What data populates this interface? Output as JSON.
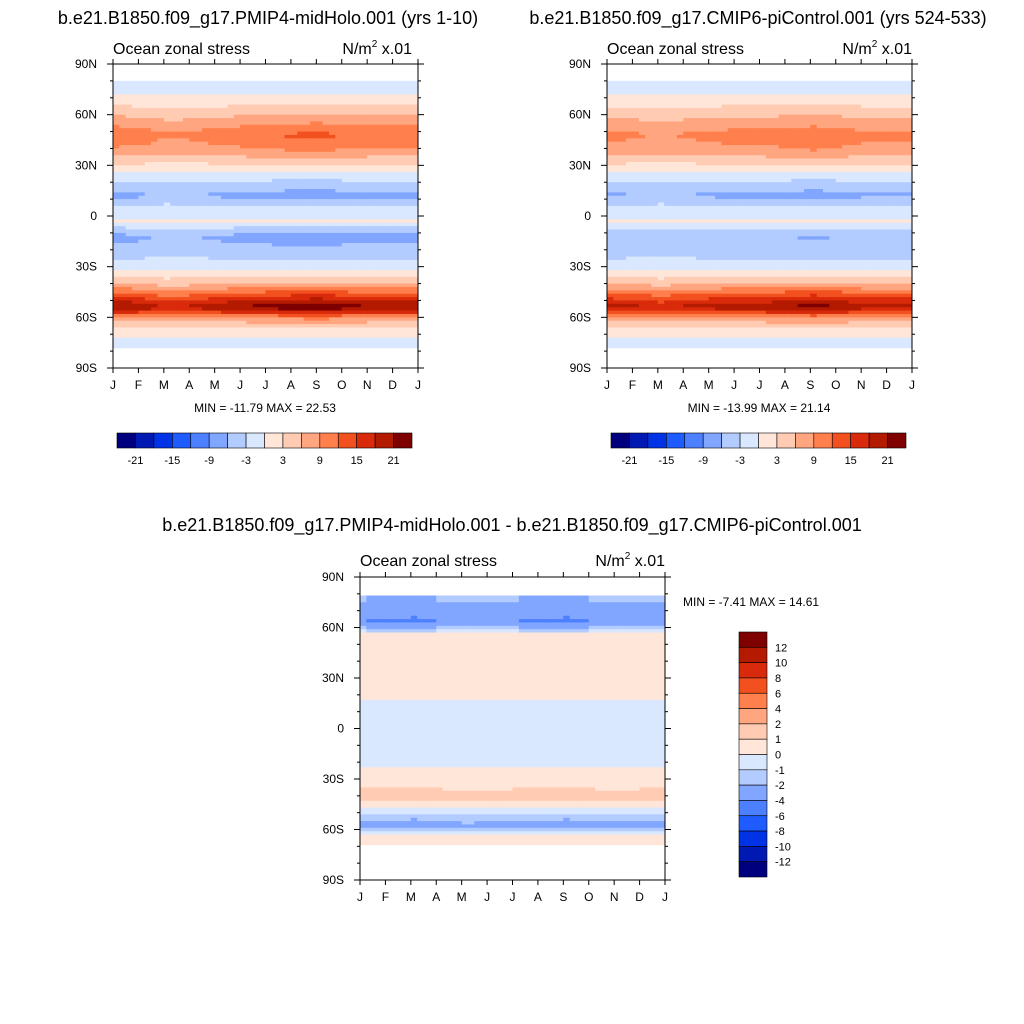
{
  "chart_data": [
    {
      "type": "heatmap",
      "title": "b.e21.B1850.f09_g17.PMIP4-midHolo.001 (yrs 1-10)",
      "left_label": "Ocean zonal stress",
      "units_base": "N/m",
      "units_exp": "2",
      "units_scale": " x.01",
      "x_ticks": [
        "J",
        "F",
        "M",
        "A",
        "M",
        "J",
        "J",
        "A",
        "S",
        "O",
        "N",
        "D",
        "J"
      ],
      "y_ticks": [
        "90N",
        "60N",
        "30N",
        "0",
        "30S",
        "60S",
        "90S"
      ],
      "ylim": [
        -90,
        90
      ],
      "stats": "MIN = -11.79 MAX =  22.53",
      "colorbar_labels": [
        "-21",
        "-15",
        "-9",
        "-3",
        "3",
        "9",
        "15",
        "21"
      ],
      "colorbar_orientation": "horizontal",
      "bands": [
        {
          "lat": 77,
          "value": -1.5
        },
        {
          "lat": 70,
          "value": 0.5
        },
        {
          "lat": 62,
          "value": 4
        },
        {
          "lat": 48,
          "value": 10
        },
        {
          "lat": 38,
          "value": 7
        },
        {
          "lat": 28,
          "value": 1
        },
        {
          "lat": 20,
          "value": -3
        },
        {
          "lat": 12,
          "value": -6
        },
        {
          "lat": 5,
          "value": -2
        },
        {
          "lat": -3,
          "value": 0
        },
        {
          "lat": -12,
          "value": -6
        },
        {
          "lat": -22,
          "value": -4
        },
        {
          "lat": -32,
          "value": 0
        },
        {
          "lat": -40,
          "value": 5
        },
        {
          "lat": -47,
          "value": 12
        },
        {
          "lat": -54,
          "value": 19
        },
        {
          "lat": -60,
          "value": 8
        },
        {
          "lat": -68,
          "value": 0.5
        },
        {
          "lat": -75,
          "value": -0.5
        }
      ],
      "monthly_mod": [
        0.15,
        0.1,
        -0.05,
        0,
        0.1,
        0.15,
        0.2,
        0.25,
        0.3,
        0.2,
        0.15,
        0.15,
        0.15
      ],
      "lat_north": 80,
      "lat_south": -78
    },
    {
      "type": "heatmap",
      "title": "b.e21.B1850.f09_g17.CMIP6-piControl.001 (yrs 524-533)",
      "left_label": "Ocean zonal stress",
      "units_base": "N/m",
      "units_exp": "2",
      "units_scale": " x.01",
      "x_ticks": [
        "J",
        "F",
        "M",
        "A",
        "M",
        "J",
        "J",
        "A",
        "S",
        "O",
        "N",
        "D",
        "J"
      ],
      "y_ticks": [
        "90N",
        "60N",
        "30N",
        "0",
        "30S",
        "60S",
        "90S"
      ],
      "ylim": [
        -90,
        90
      ],
      "stats": "MIN = -13.99 MAX =  21.14",
      "colorbar_labels": [
        "-21",
        "-15",
        "-9",
        "-3",
        "3",
        "9",
        "15",
        "21"
      ],
      "colorbar_orientation": "horizontal",
      "bands": [
        {
          "lat": 77,
          "value": -2
        },
        {
          "lat": 70,
          "value": 0.5
        },
        {
          "lat": 62,
          "value": 4
        },
        {
          "lat": 48,
          "value": 9
        },
        {
          "lat": 38,
          "value": 7
        },
        {
          "lat": 28,
          "value": 1
        },
        {
          "lat": 20,
          "value": -3
        },
        {
          "lat": 12,
          "value": -6
        },
        {
          "lat": 5,
          "value": -2
        },
        {
          "lat": -3,
          "value": 0
        },
        {
          "lat": -12,
          "value": -5
        },
        {
          "lat": -22,
          "value": -4
        },
        {
          "lat": -32,
          "value": 0
        },
        {
          "lat": -40,
          "value": 5
        },
        {
          "lat": -47,
          "value": 12
        },
        {
          "lat": -54,
          "value": 18
        },
        {
          "lat": -60,
          "value": 8
        },
        {
          "lat": -68,
          "value": 0.5
        },
        {
          "lat": -75,
          "value": -0.5
        }
      ],
      "monthly_mod": [
        0.1,
        0.05,
        -0.05,
        0.05,
        0.1,
        0.15,
        0.15,
        0.2,
        0.25,
        0.2,
        0.1,
        0.1,
        0.1
      ],
      "lat_north": 80,
      "lat_south": -78
    },
    {
      "type": "heatmap",
      "title": "b.e21.B1850.f09_g17.PMIP4-midHolo.001 - b.e21.B1850.f09_g17.CMIP6-piControl.001",
      "left_label": "Ocean zonal stress",
      "units_base": "N/m",
      "units_exp": "2",
      "units_scale": " x.01",
      "x_ticks": [
        "J",
        "F",
        "M",
        "A",
        "M",
        "J",
        "J",
        "A",
        "S",
        "O",
        "N",
        "D",
        "J"
      ],
      "y_ticks": [
        "90N",
        "60N",
        "30N",
        "0",
        "30S",
        "60S",
        "90S"
      ],
      "ylim": [
        -90,
        90
      ],
      "stats": "MIN =  -7.41 MAX =  14.61",
      "colorbar_labels": [
        "12",
        "10",
        "8",
        "6",
        "4",
        "2",
        "1",
        "0",
        "-1",
        "-2",
        "-4",
        "-6",
        "-8",
        "-10",
        "-12"
      ],
      "colorbar_orientation": "vertical",
      "bands": [
        {
          "lat": 76,
          "value": -2
        },
        {
          "lat": 70,
          "value": -3
        },
        {
          "lat": 64,
          "value": -4
        },
        {
          "lat": 55,
          "value": 0.5
        },
        {
          "lat": 40,
          "value": 0.5
        },
        {
          "lat": 25,
          "value": 0.5
        },
        {
          "lat": 10,
          "value": -0.5
        },
        {
          "lat": 0,
          "value": -0.5
        },
        {
          "lat": -15,
          "value": -0.5
        },
        {
          "lat": -30,
          "value": 0.5
        },
        {
          "lat": -42,
          "value": 1.5
        },
        {
          "lat": -52,
          "value": -1.5
        },
        {
          "lat": -58,
          "value": -2.5
        },
        {
          "lat": -64,
          "value": 0.5
        },
        {
          "lat": -70,
          "value": 0.5
        }
      ],
      "monthly_mod": [
        0.0,
        0.05,
        0.1,
        0.0,
        -0.1,
        -0.05,
        0.0,
        0.05,
        0.1,
        0.0,
        -0.05,
        0.0,
        0.0
      ],
      "lat_north": 79,
      "lat_south": -68
    }
  ],
  "colors": {
    "blue_red_15": [
      "#00007f",
      "#0019b3",
      "#0033e6",
      "#1f5cff",
      "#4d80ff",
      "#80a6ff",
      "#b3ccff",
      "#d9e8ff",
      "#ffe6d9",
      "#ffccb3",
      "#ffa680",
      "#ff7f4d",
      "#f2501f",
      "#d92a0b",
      "#b31a00",
      "#7f0000"
    ]
  }
}
